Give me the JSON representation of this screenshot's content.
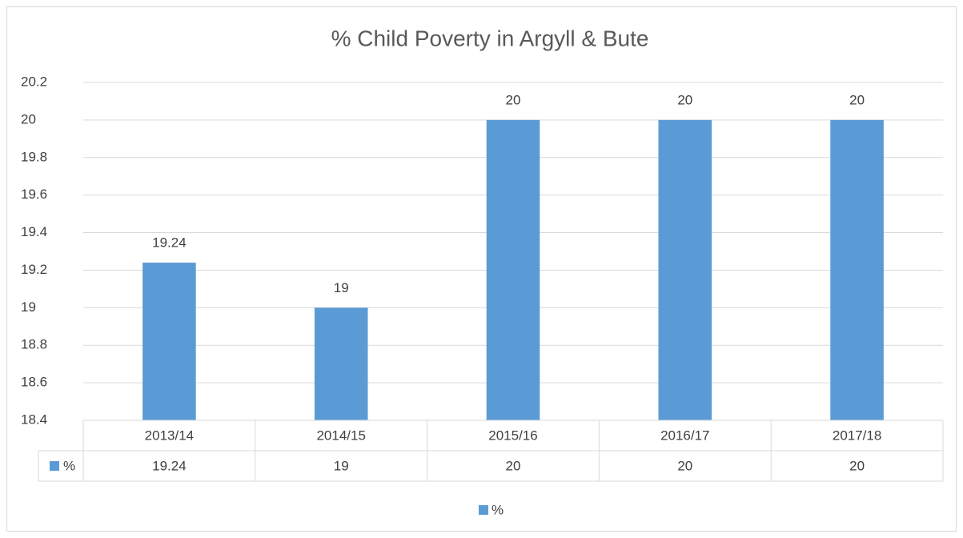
{
  "chart_data": {
    "type": "bar",
    "title": "% Child Poverty in Argyll & Bute",
    "categories": [
      "2013/14",
      "2014/15",
      "2015/16",
      "2016/17",
      "2017/18"
    ],
    "series": [
      {
        "name": "%",
        "color": "#5b9bd5",
        "values": [
          19.24,
          19,
          20,
          20,
          20
        ]
      }
    ],
    "ylim": [
      18.4,
      20.2
    ],
    "yticks": [
      18.4,
      18.6,
      18.8,
      19,
      19.2,
      19.4,
      19.6,
      19.8,
      20,
      20.2
    ],
    "grid": true,
    "data_table": true,
    "legend": "bottom"
  }
}
